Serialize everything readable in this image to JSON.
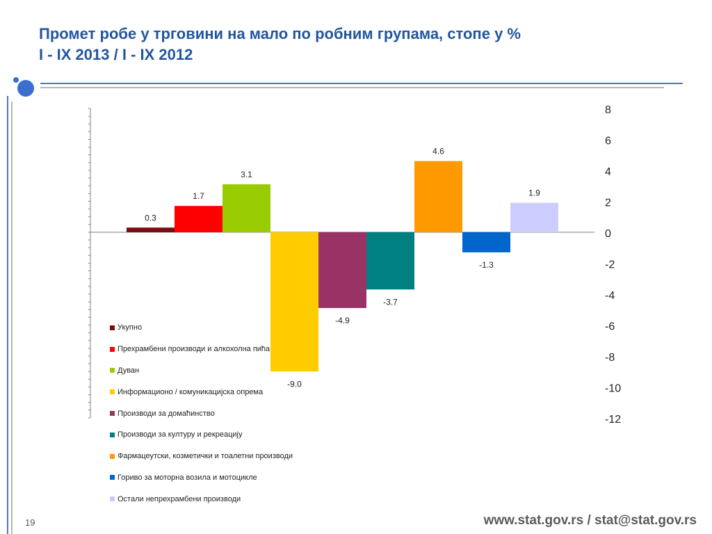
{
  "slide": {
    "title_line1": "Промет робе у трговини на мало по робним групама, стопе у %",
    "title_line2": "I - IX 2013 / I - IX 2012",
    "page_number": "19",
    "footer": "www.stat.gov.rs / stat@stat.gov.rs"
  },
  "colors": {
    "title": "#2255a0",
    "accent_dot": "#3a6fd0",
    "rule": "#4a78c0"
  },
  "chart_data": {
    "type": "bar",
    "categories": [
      "Укупно",
      "Прехрамбени производи и алкохолна пића",
      "Дуван",
      "Информационо / комуникацијска опрема",
      "Производи за домаћинство",
      "Производи за културу и рекреацију",
      "Фармацеутски, козметички и тоалетни производи",
      "Гориво за моторна возила и мотоцикле",
      "Остали непрехрамбени производи"
    ],
    "values": [
      0.3,
      1.7,
      3.1,
      -9.0,
      -4.9,
      -3.7,
      4.6,
      -1.3,
      1.9
    ],
    "value_labels": [
      "0.3",
      "1.7",
      "3.1",
      "-9.0",
      "-4.9",
      "-3.7",
      "4.6",
      "-1.3",
      "1.9"
    ],
    "colors": [
      "#7b0c10",
      "#ff0000",
      "#99cc00",
      "#ffcc00",
      "#993366",
      "#008080",
      "#ff9900",
      "#0066cc",
      "#ccccff"
    ],
    "ylim": [
      -12,
      8
    ],
    "y_ticks": [
      8,
      6,
      4,
      2,
      0,
      -2,
      -4,
      -6,
      -8,
      -10,
      -12
    ],
    "y_axis_side": "right",
    "legend_position": "bottom-left",
    "grid": false
  }
}
